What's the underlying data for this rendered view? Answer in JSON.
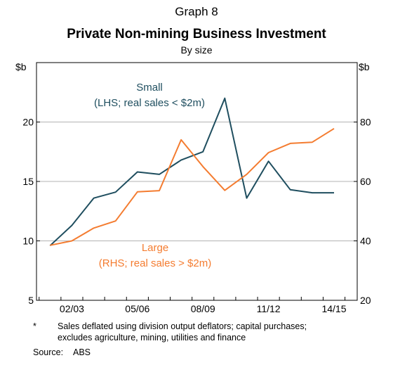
{
  "graph_label": "Graph 8",
  "chart_data": {
    "type": "line",
    "title": "Private Non-mining Business Investment",
    "subtitle": "By size",
    "left_axis": {
      "unit": "$b",
      "ylim": [
        5,
        25
      ],
      "ticks": [
        "5",
        "10",
        "15",
        "20"
      ],
      "tick_values": [
        5,
        10,
        15,
        20
      ]
    },
    "right_axis": {
      "unit": "$b",
      "ylim": [
        20,
        100
      ],
      "ticks": [
        "20",
        "40",
        "60",
        "80"
      ],
      "tick_values": [
        20,
        40,
        60,
        80
      ]
    },
    "x_ticks": [
      "02/03",
      "05/06",
      "08/09",
      "11/12",
      "14/15"
    ],
    "x_tick_values": [
      2003,
      2006,
      2009,
      2012,
      2015
    ],
    "xlim": [
      2000.88,
      2015.56
    ],
    "grid": true,
    "series": [
      {
        "name": "Small",
        "axis": "left",
        "color": "#1f4e5f",
        "annotation": [
          "Small",
          "(LHS; real sales < $2m)"
        ],
        "x": [
          2001.5,
          2002.5,
          2003.5,
          2004.5,
          2005.5,
          2006.5,
          2007.5,
          2008.5,
          2009.5,
          2010.5,
          2011.5,
          2012.5,
          2013.5,
          2014.5
        ],
        "values": [
          9.6,
          11.3,
          13.6,
          14.1,
          15.8,
          15.6,
          16.8,
          17.5,
          22.0,
          13.6,
          16.7,
          14.3,
          14.05,
          14.05
        ]
      },
      {
        "name": "Large",
        "axis": "right",
        "color": "#f47c30",
        "annotation": [
          "Large",
          "(RHS; real sales > $2m)"
        ],
        "x": [
          2001.5,
          2002.5,
          2003.5,
          2004.5,
          2005.5,
          2006.5,
          2007.5,
          2008.5,
          2009.5,
          2010.5,
          2011.5,
          2012.5,
          2013.5,
          2014.5
        ],
        "values": [
          38.5,
          40.0,
          44.3,
          46.7,
          56.5,
          56.9,
          74.0,
          65.0,
          57.0,
          62.4,
          69.7,
          72.8,
          73.2,
          77.8
        ]
      }
    ]
  },
  "footnote": {
    "marker": "*",
    "text_line1": "Sales deflated using division output deflators; capital purchases;",
    "text_line2": "excludes agriculture, mining, utilities and finance"
  },
  "source": {
    "label": "Source:",
    "value": "ABS"
  }
}
